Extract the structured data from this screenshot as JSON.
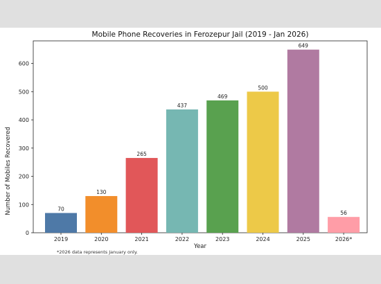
{
  "chart_data": {
    "type": "bar",
    "title": "Mobile Phone Recoveries in Ferozepur Jail (2019 - Jan 2026)",
    "xlabel": "Year",
    "ylabel": "Number of Mobiles Recovered",
    "categories": [
      "2019",
      "2020",
      "2021",
      "2022",
      "2023",
      "2024",
      "2025",
      "2026*"
    ],
    "values": [
      70,
      130,
      265,
      437,
      469,
      500,
      649,
      56
    ],
    "data_labels": [
      "70",
      "130",
      "265",
      "437",
      "469",
      "500",
      "649",
      "56"
    ],
    "bar_colors": [
      "#4e79a7",
      "#f28e2b",
      "#e15759",
      "#76b7b2",
      "#59a14f",
      "#edc948",
      "#b07aa1",
      "#ff9da7"
    ],
    "yticks": [
      0,
      100,
      200,
      300,
      400,
      500,
      600
    ],
    "ylim": [
      0,
      680
    ],
    "grid": false,
    "footnote": "*2026 data represents January only."
  }
}
